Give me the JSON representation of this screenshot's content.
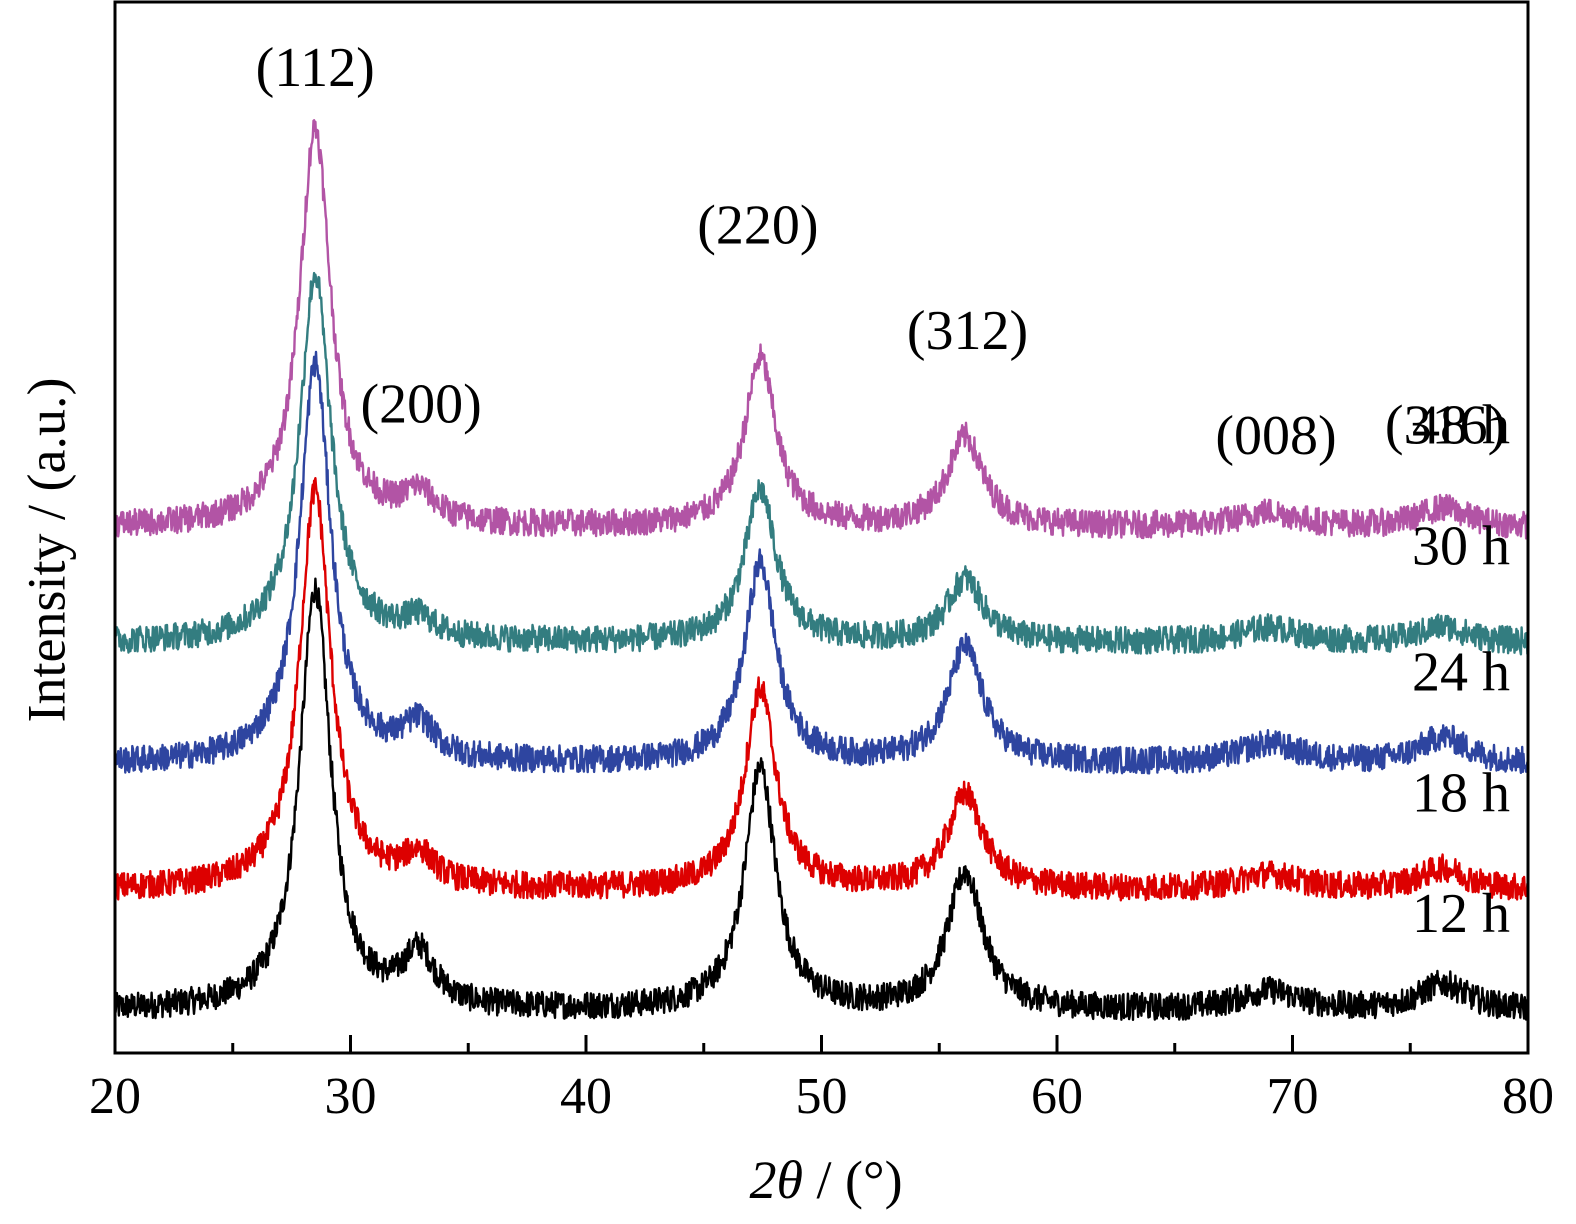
{
  "chart_data": {
    "type": "line",
    "title": "",
    "xlabel": "2θ / (°)",
    "xlabel_parts": {
      "var": "2θ",
      "rest": " / (°)"
    },
    "ylabel": "Intensity / (a.u.)",
    "xlim": [
      20,
      80
    ],
    "x_major_ticks": [
      20,
      30,
      40,
      50,
      60,
      70,
      80
    ],
    "x_minor_ticks": [
      25,
      35,
      45,
      55,
      65,
      75
    ],
    "ylim": [
      0,
      100
    ],
    "y_ticks_shown": false,
    "grid": false,
    "legend": "none (series labelled directly at right)",
    "peak_labels": [
      {
        "text": "(112)",
        "x": 28.5,
        "y": 92
      },
      {
        "text": "(200)",
        "x": 33.0,
        "y": 60
      },
      {
        "text": "(220)",
        "x": 47.3,
        "y": 77
      },
      {
        "text": "(312)",
        "x": 56.2,
        "y": 67
      },
      {
        "text": "(008)",
        "x": 69.3,
        "y": 57
      },
      {
        "text": "(316)",
        "x": 76.5,
        "y": 58
      }
    ],
    "peaks": [
      {
        "hkl": "(112)",
        "x": 28.5,
        "width": 0.8
      },
      {
        "hkl": "(200)",
        "x": 32.9,
        "width": 0.8
      },
      {
        "hkl": "(220)",
        "x": 47.4,
        "width": 0.8
      },
      {
        "hkl": "(312)",
        "x": 56.1,
        "width": 0.9
      },
      {
        "hkl": "(008)",
        "x": 69.0,
        "width": 1.5
      },
      {
        "hkl": "(316)",
        "x": 76.4,
        "width": 1.2
      }
    ],
    "series": [
      {
        "name": "12 h",
        "color": "#000000",
        "baseline": 4.0,
        "noise": 1.3,
        "heights": [
          40.0,
          5.0,
          23.0,
          13.0,
          1.8,
          2.5
        ],
        "label_y": 11.5
      },
      {
        "name": "18 h",
        "color": "#dd0000",
        "baseline": 15.5,
        "noise": 1.3,
        "heights": [
          38.0,
          2.8,
          19.0,
          9.0,
          1.4,
          2.0
        ],
        "label_y": 23.0
      },
      {
        "name": "24 h",
        "color": "#2e45a0",
        "baseline": 27.5,
        "noise": 1.3,
        "heights": [
          38.0,
          3.3,
          19.0,
          11.0,
          1.8,
          2.5
        ],
        "label_y": 34.5
      },
      {
        "name": "30 h",
        "color": "#337d80",
        "baseline": 39.0,
        "noise": 1.3,
        "heights": [
          35.0,
          1.8,
          14.5,
          6.0,
          1.4,
          1.5
        ],
        "label_y": 46.5
      },
      {
        "name": "48 h",
        "color": "#b254a5",
        "baseline": 50.0,
        "noise": 1.3,
        "heights": [
          38.0,
          2.8,
          16.0,
          8.5,
          1.4,
          1.8
        ],
        "label_y": 58.0
      }
    ]
  }
}
